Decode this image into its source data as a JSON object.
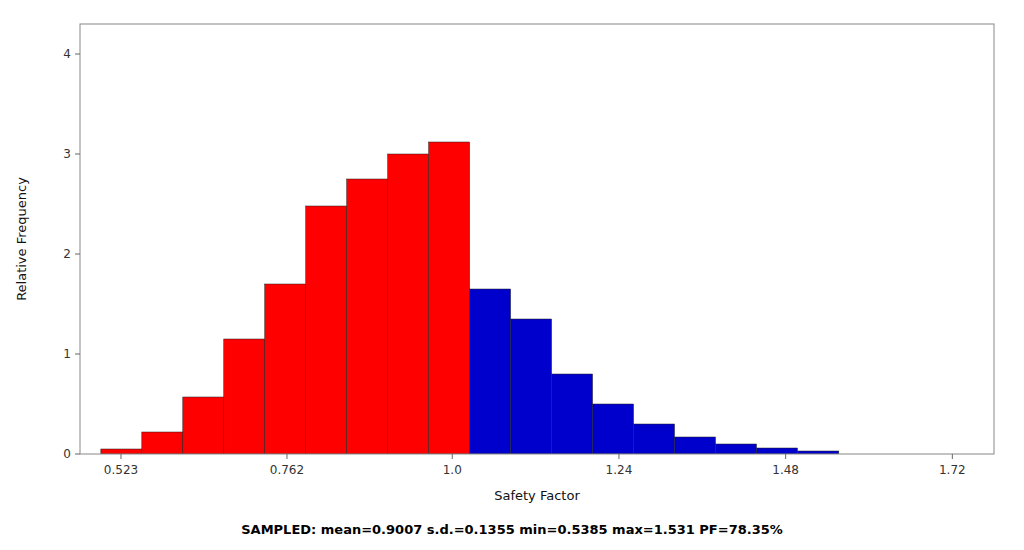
{
  "chart_data": {
    "type": "histogram",
    "xlabel": "Safety Factor",
    "ylabel": "Relative Frequency",
    "caption": "SAMPLED: mean=0.9007 s.d.=0.1355 min=0.5385 max=1.531 PF=78.35%",
    "bins": [
      0.494,
      0.553,
      0.612,
      0.671,
      0.73,
      0.789,
      0.848,
      0.907,
      0.966,
      1.025,
      1.084,
      1.143,
      1.202,
      1.261,
      1.32,
      1.379,
      1.438,
      1.497,
      1.5565
    ],
    "values": [
      0.05,
      0.22,
      0.57,
      1.15,
      1.7,
      2.48,
      2.75,
      3.0,
      3.12,
      1.65,
      1.35,
      0.8,
      0.5,
      0.3,
      0.17,
      0.1,
      0.06,
      0.03
    ],
    "colors": [
      "#FF0000",
      "#FF0000",
      "#FF0000",
      "#FF0000",
      "#FF0000",
      "#FF0000",
      "#FF0000",
      "#FF0000",
      "#FF0000",
      "#0000CC",
      "#0000CC",
      "#0000CC",
      "#0000CC",
      "#0000CC",
      "#0000CC",
      "#0000CC",
      "#0000CC",
      "#0000CC"
    ],
    "xlim": [
      0.464,
      1.78
    ],
    "xticks": [
      0.523,
      0.762,
      {
        "value": 1.0,
        "label": "1.0"
      },
      1.24,
      1.48,
      1.72
    ],
    "ylim": [
      0,
      4.3
    ],
    "yticks": [
      0,
      1,
      2,
      3,
      4
    ],
    "grid": false
  }
}
